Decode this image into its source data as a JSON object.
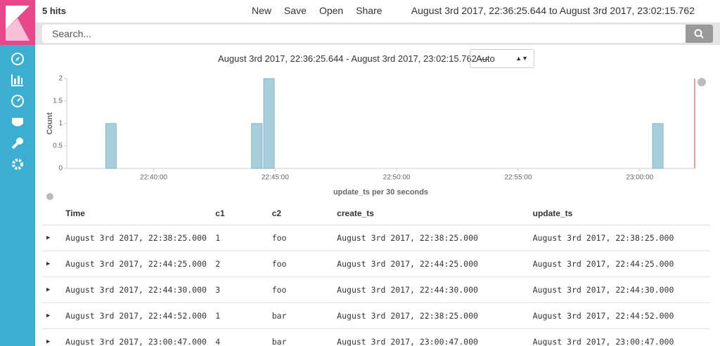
{
  "header": {
    "hits": "5 hits",
    "menu": [
      "New",
      "Save",
      "Open",
      "Share"
    ],
    "time_range": "August 3rd 2017, 22:36:25.644 to August 3rd 2017, 23:02:15.762"
  },
  "search": {
    "placeholder": "Search..."
  },
  "interval": {
    "range": "August 3rd 2017, 22:36:25.644 - August 3rd 2017, 23:02:15.762 —",
    "selected": "Auto"
  },
  "chart_data": {
    "type": "bar",
    "x": [
      "22:38:00",
      "22:44:00",
      "22:44:30",
      "23:00:30"
    ],
    "values": [
      1,
      1,
      2,
      1
    ],
    "color": "#a7cfdb",
    "xlim": [
      "22:36:25.644",
      "23:02:15.762"
    ],
    "xticks": [
      "22:40:00",
      "22:45:00",
      "22:50:00",
      "22:55:00",
      "23:00:00"
    ],
    "ylim": [
      0,
      2
    ],
    "yticks": [
      0,
      0.5,
      1,
      1.5,
      2
    ],
    "x_label": "update_ts per 30 seconds",
    "y_label": "Count",
    "grid": false
  },
  "table": {
    "columns": [
      "Time",
      "c1",
      "c2",
      "create_ts",
      "update_ts"
    ],
    "rows": [
      [
        "August 3rd 2017, 22:38:25.000",
        "1",
        "foo",
        "August 3rd 2017, 22:38:25.000",
        "August 3rd 2017, 22:38:25.000"
      ],
      [
        "August 3rd 2017, 22:44:25.000",
        "2",
        "foo",
        "August 3rd 2017, 22:44:25.000",
        "August 3rd 2017, 22:44:25.000"
      ],
      [
        "August 3rd 2017, 22:44:30.000",
        "3",
        "foo",
        "August 3rd 2017, 22:44:30.000",
        "August 3rd 2017, 22:44:30.000"
      ],
      [
        "August 3rd 2017, 22:44:52.000",
        "1",
        "bar",
        "August 3rd 2017, 22:38:25.000",
        "August 3rd 2017, 22:44:52.000"
      ],
      [
        "August 3rd 2017, 23:00:47.000",
        "4",
        "bar",
        "August 3rd 2017, 23:00:47.000",
        "August 3rd 2017, 23:00:47.000"
      ]
    ]
  }
}
